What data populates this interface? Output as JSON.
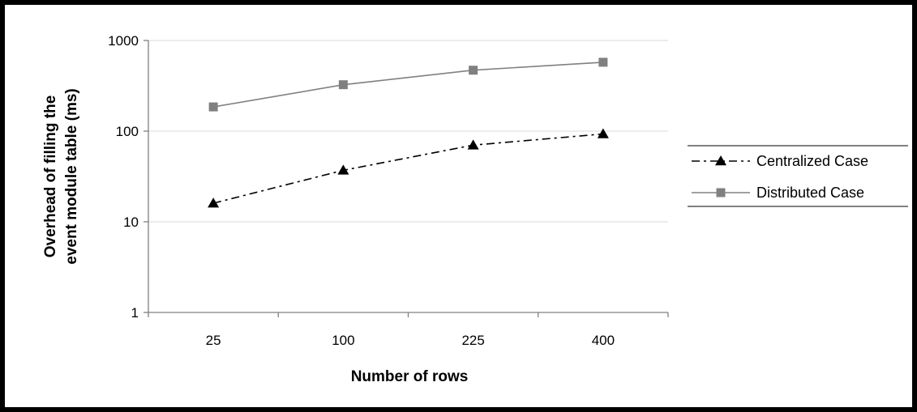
{
  "chart_data": {
    "type": "line",
    "title": "",
    "xlabel": "Number of rows",
    "ylabel_lines": [
      "Overhead of filling the",
      "event module table (ms)"
    ],
    "y_scale": "log",
    "ylim": [
      1,
      1000
    ],
    "y_ticks": [
      1,
      10,
      100,
      1000
    ],
    "y_tick_labels": [
      "1",
      "10",
      "100",
      "1000"
    ],
    "categories": [
      "25",
      "100",
      "225",
      "400"
    ],
    "grid": true,
    "legend_position": "right",
    "series": [
      {
        "name": "Centralized Case",
        "values": [
          16,
          37,
          70,
          93
        ],
        "marker": "triangle",
        "line_style": "dash-dot",
        "color": "#000000"
      },
      {
        "name": "Distributed Case",
        "values": [
          185,
          325,
          470,
          575
        ],
        "marker": "square",
        "line_style": "solid",
        "color": "#808080"
      }
    ]
  }
}
